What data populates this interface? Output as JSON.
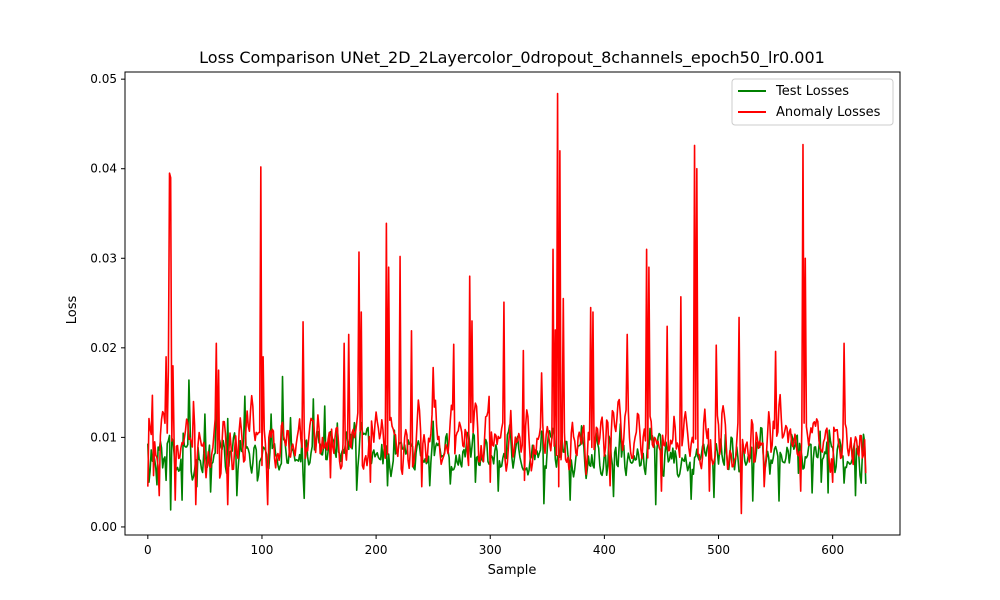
{
  "chart_data": {
    "type": "line",
    "title": "Loss Comparison UNet_2D_2Layercolor_0dropout_8channels_epoch50_lr0.001",
    "xlabel": "Sample",
    "ylabel": "Loss",
    "xlim": [
      -20,
      659
    ],
    "ylim": [
      -0.0009,
      0.0508
    ],
    "x_ticks": [
      0,
      100,
      200,
      300,
      400,
      500,
      600
    ],
    "y_ticks": [
      0.0,
      0.01,
      0.02,
      0.03,
      0.04,
      0.05
    ],
    "x_tick_labels": [
      "0",
      "100",
      "200",
      "300",
      "400",
      "500",
      "600"
    ],
    "y_tick_labels": [
      "0.00",
      "0.01",
      "0.02",
      "0.03",
      "0.04",
      "0.05"
    ],
    "grid": false,
    "legend_position": "upper right",
    "n_points": 630,
    "series": [
      {
        "name": "Test Losses",
        "color": "#008000",
        "baseline": [
          0.0045,
          0.0115
        ],
        "keypoints": [
          [
            0,
            0.0093
          ],
          [
            1,
            0.005
          ],
          [
            3,
            0.0086
          ],
          [
            8,
            0.0047
          ],
          [
            13,
            0.0066
          ],
          [
            16,
            0.0052
          ],
          [
            20,
            0.0066
          ],
          [
            36,
            0.0164
          ],
          [
            37,
            0.0115
          ],
          [
            43,
            0.0045
          ],
          [
            50,
            0.0126
          ],
          [
            60,
            0.0159
          ],
          [
            70,
            0.0121
          ],
          [
            85,
            0.0146
          ],
          [
            95,
            0.0086
          ],
          [
            108,
            0.0126
          ],
          [
            118,
            0.0168
          ],
          [
            125,
            0.0122
          ],
          [
            130,
            0.0075
          ],
          [
            135,
            0.0098
          ],
          [
            145,
            0.0143
          ],
          [
            155,
            0.0135
          ],
          [
            166,
            0.0116
          ],
          [
            180,
            0.0102
          ],
          [
            193,
            0.0111
          ],
          [
            205,
            0.0092
          ],
          [
            216,
            0.0108
          ],
          [
            230,
            0.0094
          ],
          [
            250,
            0.0118
          ],
          [
            270,
            0.008
          ],
          [
            297,
            0.0094
          ],
          [
            315,
            0.0103
          ],
          [
            325,
            0.0087
          ],
          [
            345,
            0.0107
          ],
          [
            360,
            0.0079
          ],
          [
            380,
            0.0113
          ],
          [
            395,
            0.0088
          ],
          [
            414,
            0.0115
          ],
          [
            440,
            0.011
          ],
          [
            460,
            0.0088
          ],
          [
            480,
            0.0079
          ],
          [
            495,
            0.0072
          ],
          [
            505,
            0.0069
          ],
          [
            520,
            0.0058
          ],
          [
            545,
            0.0059
          ],
          [
            570,
            0.006
          ],
          [
            590,
            0.005
          ],
          [
            610,
            0.0049
          ],
          [
            620,
            0.0068
          ],
          [
            625,
            0.0049
          ],
          [
            629,
            0.0048
          ]
        ],
        "min_dips": [
          [
            20,
            0.0019
          ],
          [
            30,
            0.003
          ],
          [
            55,
            0.0039
          ],
          [
            78,
            0.0035
          ],
          [
            137,
            0.0032
          ],
          [
            183,
            0.0041
          ],
          [
            210,
            0.0046
          ],
          [
            247,
            0.0046
          ],
          [
            265,
            0.0048
          ],
          [
            287,
            0.005
          ],
          [
            307,
            0.004
          ],
          [
            347,
            0.0026
          ],
          [
            370,
            0.003
          ],
          [
            408,
            0.0034
          ],
          [
            445,
            0.0025
          ],
          [
            476,
            0.0031
          ],
          [
            496,
            0.0033
          ],
          [
            530,
            0.0029
          ],
          [
            553,
            0.0029
          ],
          [
            582,
            0.0038
          ],
          [
            596,
            0.0038
          ],
          [
            620,
            0.0035
          ]
        ]
      },
      {
        "name": "Anomaly Losses",
        "color": "#ff0000",
        "baseline": [
          0.0045,
          0.0145
        ],
        "keypoints": [
          [
            0,
            0.0045
          ],
          [
            4,
            0.0147
          ],
          [
            6,
            0.0095
          ],
          [
            10,
            0.0035
          ],
          [
            16,
            0.019
          ],
          [
            18,
            0.0175
          ],
          [
            19,
            0.0395
          ],
          [
            20,
            0.039
          ],
          [
            22,
            0.018
          ],
          [
            25,
            0.009
          ],
          [
            40,
            0.014
          ],
          [
            60,
            0.0205
          ],
          [
            62,
            0.0175
          ],
          [
            99,
            0.0402
          ],
          [
            101,
            0.019
          ],
          [
            136,
            0.0229
          ],
          [
            140,
            0.0085
          ],
          [
            172,
            0.0205
          ],
          [
            176,
            0.0215
          ],
          [
            185,
            0.0307
          ],
          [
            187,
            0.024
          ],
          [
            209,
            0.0339
          ],
          [
            211,
            0.029
          ],
          [
            221,
            0.0302
          ],
          [
            231,
            0.0219
          ],
          [
            250,
            0.0178
          ],
          [
            268,
            0.0204
          ],
          [
            282,
            0.028
          ],
          [
            284,
            0.023
          ],
          [
            312,
            0.0251
          ],
          [
            318,
            0.013
          ],
          [
            329,
            0.0197
          ],
          [
            345,
            0.0172
          ],
          [
            355,
            0.031
          ],
          [
            357,
            0.022
          ],
          [
            359,
            0.0484
          ],
          [
            361,
            0.042
          ],
          [
            364,
            0.0255
          ],
          [
            388,
            0.0245
          ],
          [
            390,
            0.024
          ],
          [
            420,
            0.0215
          ],
          [
            437,
            0.031
          ],
          [
            439,
            0.029
          ],
          [
            455,
            0.0224
          ],
          [
            467,
            0.0257
          ],
          [
            479,
            0.0426
          ],
          [
            481,
            0.04
          ],
          [
            498,
            0.0203
          ],
          [
            518,
            0.0234
          ],
          [
            520,
            0.0015
          ],
          [
            550,
            0.0196
          ],
          [
            574,
            0.0427
          ],
          [
            576,
            0.03
          ],
          [
            600,
            0.0182
          ],
          [
            610,
            0.0205
          ],
          [
            629,
            0.006
          ]
        ],
        "min_dips": [
          [
            10,
            0.0035
          ],
          [
            24,
            0.003
          ],
          [
            42,
            0.0025
          ],
          [
            70,
            0.0025
          ],
          [
            105,
            0.0025
          ],
          [
            160,
            0.0055
          ],
          [
            195,
            0.005
          ],
          [
            240,
            0.0045
          ],
          [
            300,
            0.005
          ],
          [
            330,
            0.0052
          ],
          [
            360,
            0.0045
          ],
          [
            405,
            0.0046
          ],
          [
            450,
            0.004
          ],
          [
            492,
            0.004
          ],
          [
            520,
            0.0015
          ],
          [
            540,
            0.0045
          ],
          [
            572,
            0.004
          ],
          [
            600,
            0.005
          ],
          [
            629,
            0.006
          ]
        ]
      }
    ]
  }
}
